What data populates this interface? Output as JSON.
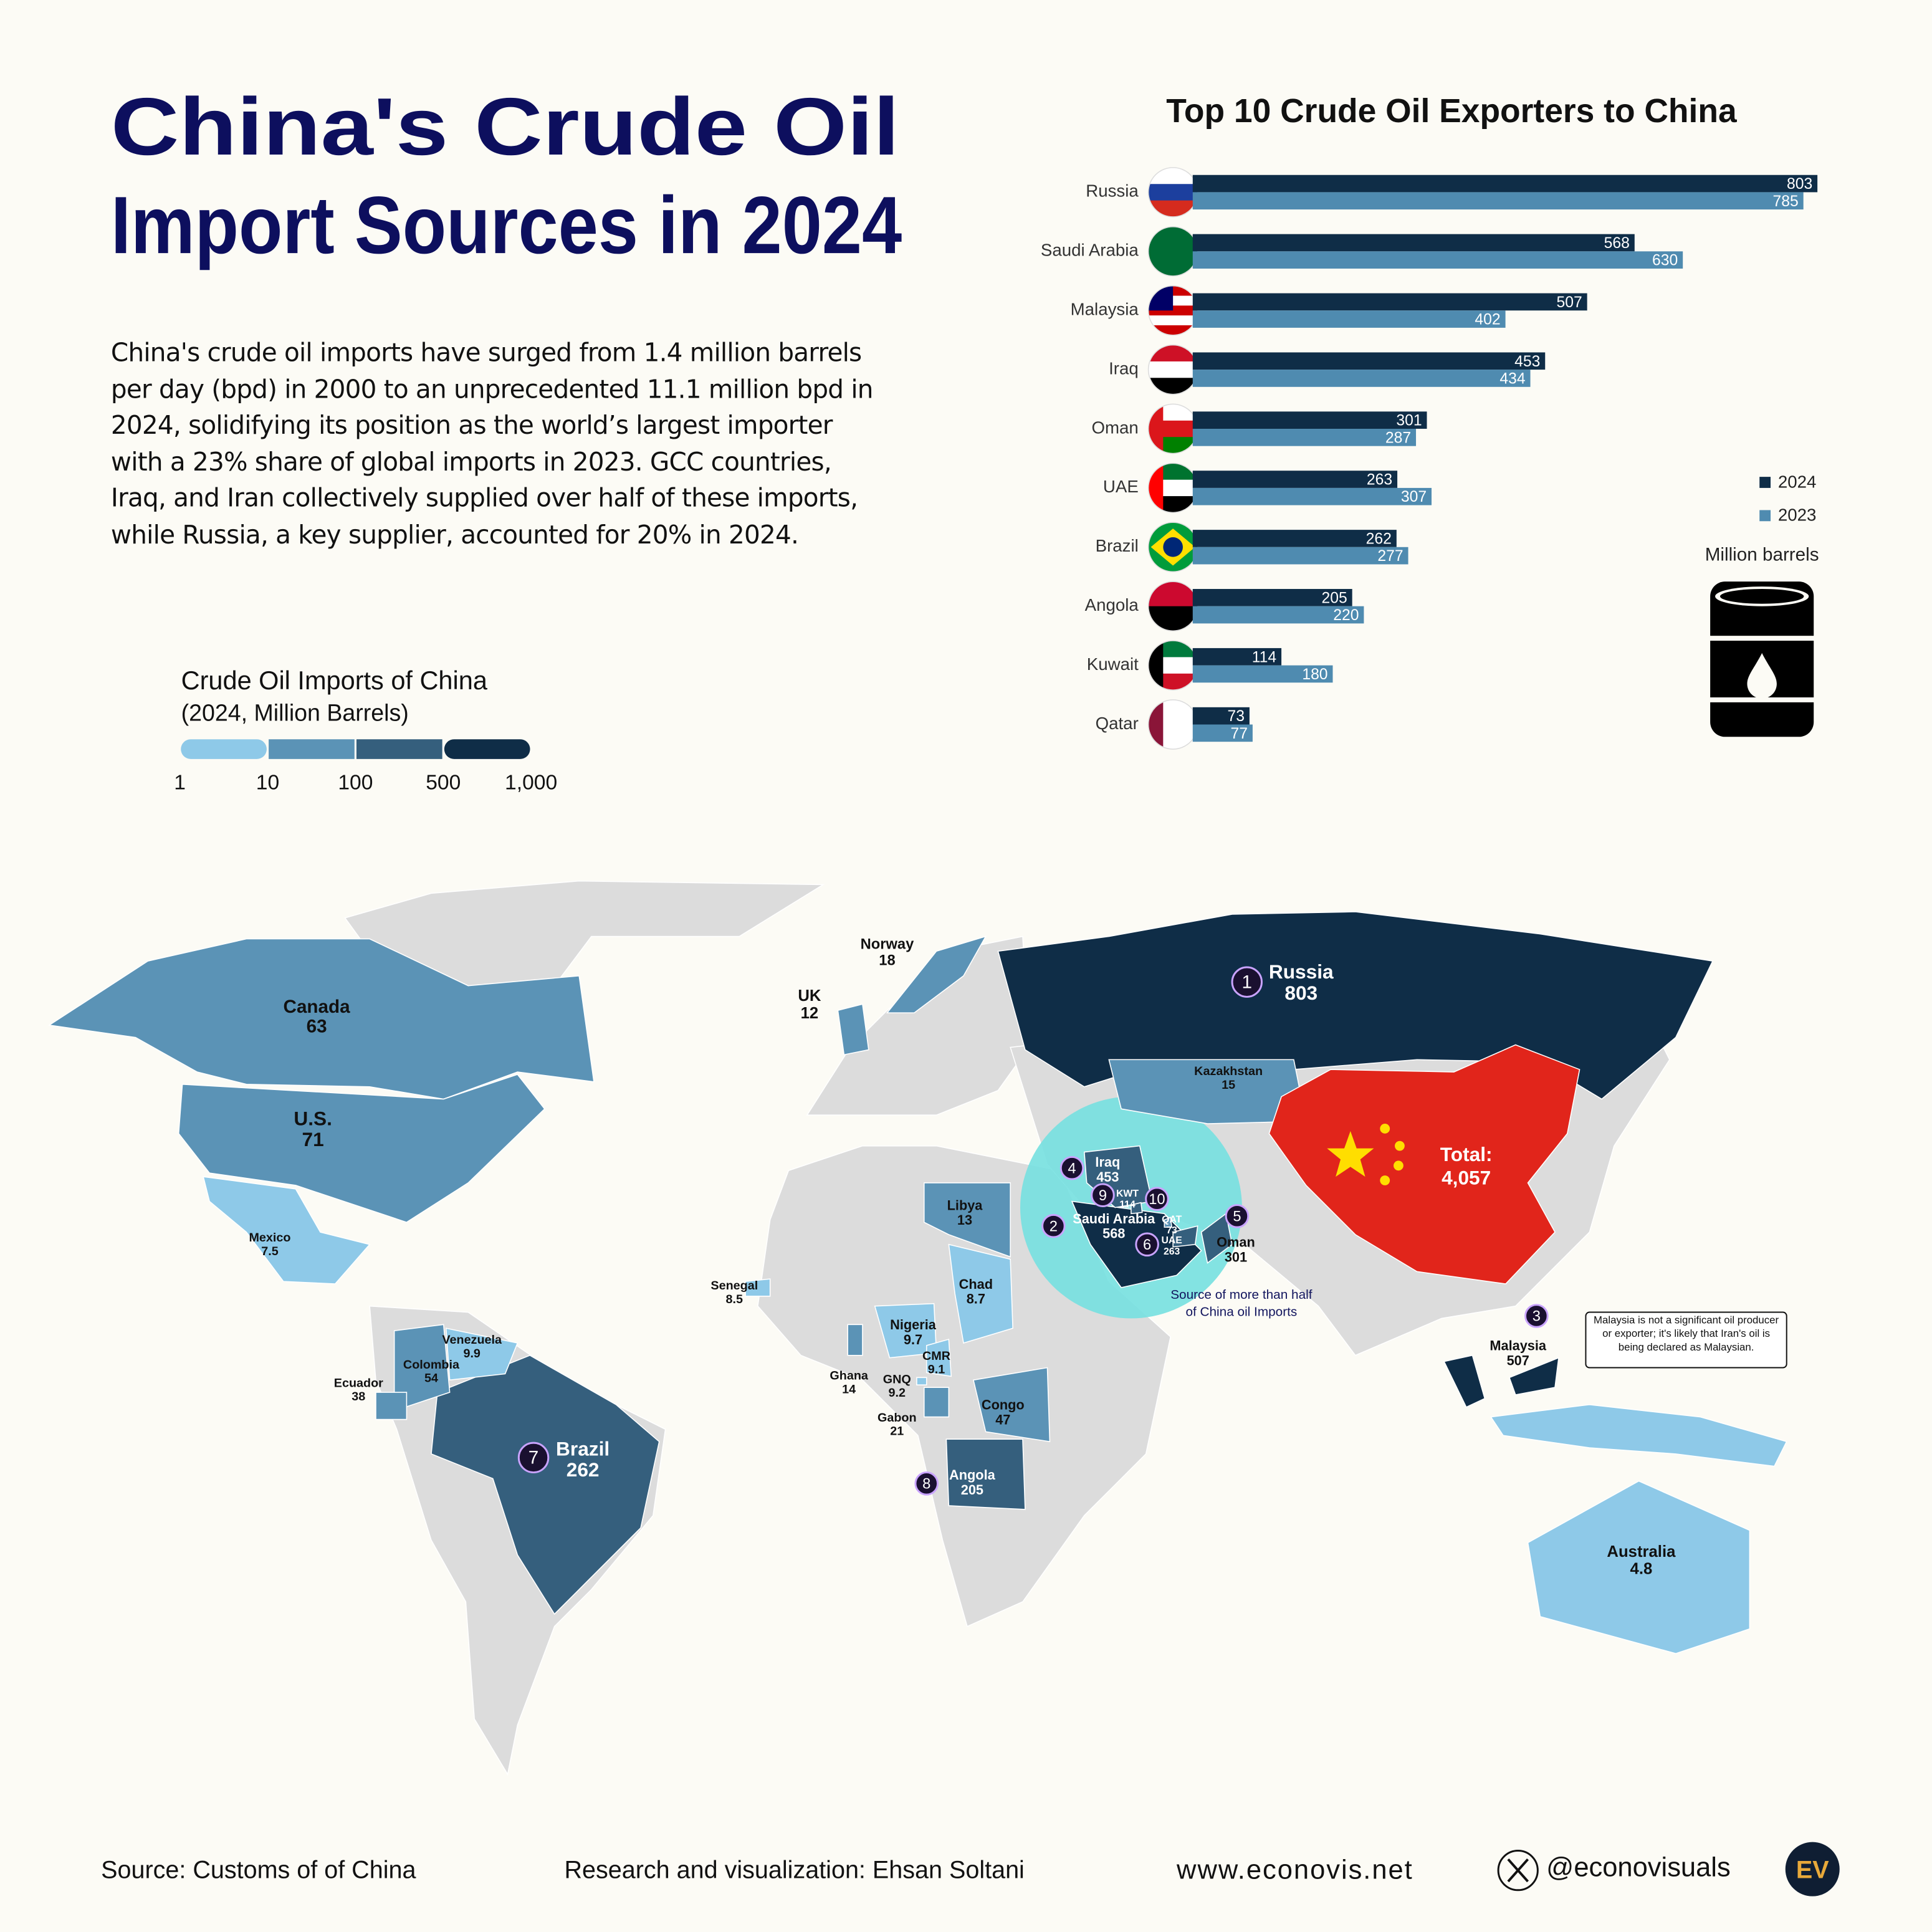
{
  "title_line1": "China's Crude Oil",
  "title_line2": "Import Sources in 2024",
  "description": "China's crude oil imports have surged from 1.4 million barrels per day (bpd) in 2000 to an unprecedented 11.1 million bpd in 2024, solidifying its position as the world’s largest importer with a 23% share of global imports in 2023. GCC countries, Iraq, and Iran collectively supplied over half of these imports, while Russia, a key supplier, accounted for 20% in 2024.",
  "chart_data": {
    "type": "bar",
    "orientation": "horizontal",
    "title": "Top 10 Crude Oil Exporters to China",
    "categories": [
      "Russia",
      "Saudi Arabia",
      "Malaysia",
      "Iraq",
      "Oman",
      "UAE",
      "Brazil",
      "Angola",
      "Kuwait",
      "Qatar"
    ],
    "series": [
      {
        "name": "2024",
        "color": "#0f2d47",
        "values": [
          803,
          568,
          507,
          453,
          301,
          263,
          262,
          205,
          114,
          73
        ]
      },
      {
        "name": "2023",
        "color": "#4f8bb0",
        "values": [
          785,
          630,
          402,
          434,
          287,
          307,
          277,
          220,
          180,
          77
        ]
      }
    ],
    "xlim": [
      0,
      803
    ],
    "unit": "Million barrels"
  },
  "color_scale": {
    "title": "Crude Oil Imports of China",
    "subtitle": "(2024, Million Barrels)",
    "stops": [
      1,
      10,
      100,
      500,
      {
        "value": 1000,
        "label": "1,000"
      }
    ],
    "colors": [
      "#8ec9e8",
      "#5b93b6",
      "#355f7d",
      "#0f2d47"
    ]
  },
  "map": {
    "countries": [
      {
        "name": "Russia",
        "value": 803,
        "rank": 1
      },
      {
        "name": "Saudi Arabia",
        "value": 568,
        "rank": 2
      },
      {
        "name": "Malaysia",
        "value": 507,
        "rank": 3
      },
      {
        "name": "Iraq",
        "value": 453,
        "rank": 4
      },
      {
        "name": "Oman",
        "value": 301,
        "rank": 5
      },
      {
        "name": "UAE",
        "value": 263,
        "rank": 6
      },
      {
        "name": "Brazil",
        "value": 262,
        "rank": 7
      },
      {
        "name": "Angola",
        "value": 205,
        "rank": 8
      },
      {
        "name": "KWT",
        "value": 114,
        "rank": 9
      },
      {
        "name": "QAT",
        "value": 73,
        "rank": 10
      },
      {
        "name": "Canada",
        "value": 63
      },
      {
        "name": "U.S.",
        "value": 71
      },
      {
        "name": "Mexico",
        "value": 7.5
      },
      {
        "name": "Venezuela",
        "value": 9.9
      },
      {
        "name": "Colombia",
        "value": 54
      },
      {
        "name": "Ecuador",
        "value": 38
      },
      {
        "name": "Norway",
        "value": 18
      },
      {
        "name": "UK",
        "value": 12
      },
      {
        "name": "Kazakhstan",
        "value": 15
      },
      {
        "name": "Libya",
        "value": 13
      },
      {
        "name": "Senegal",
        "value": 8.5
      },
      {
        "name": "Chad",
        "value": 8.7
      },
      {
        "name": "Nigeria",
        "value": 9.7
      },
      {
        "name": "CMR",
        "value": 9.1
      },
      {
        "name": "Ghana",
        "value": 14
      },
      {
        "name": "GNQ",
        "value": 9.2
      },
      {
        "name": "Gabon",
        "value": 21
      },
      {
        "name": "Congo",
        "value": 47
      },
      {
        "name": "Australia",
        "value": 4.8
      }
    ],
    "china": {
      "label": "Total:",
      "total": {
        "value": 4057,
        "label": "4,057"
      },
      "color": "#e1251b"
    },
    "highlight_note": "Source of more than half of China oil Imports",
    "malaysia_note": "Malaysia is not a significant oil producer or exporter; it's likely that Iran's oil is being declared as Malaysian."
  },
  "footer": {
    "source": "Source: Customs of of China",
    "credit": "Research and visualization: Ehsan Soltani",
    "website": "www.econovis.net",
    "handle": "@econovisuals",
    "logo": "EV"
  }
}
